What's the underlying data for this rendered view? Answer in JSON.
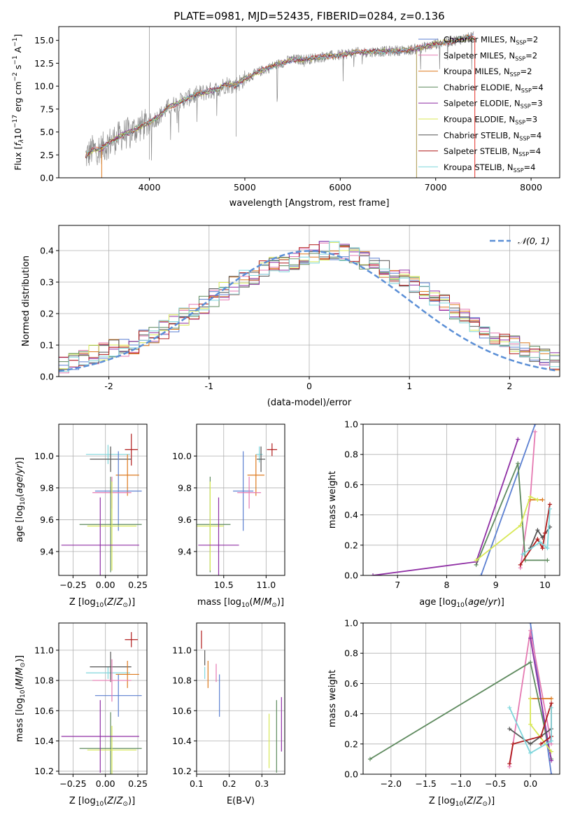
{
  "chart_data": [
    {
      "id": "spectrum",
      "type": "line",
      "title": "PLATE=0981, MJD=52435, FIBERID=0284, z=0.136",
      "xlabel": "wavelength [Angstrom, rest frame]",
      "ylabel": "Flux [f_λ 10^-17 erg cm^-2 s^-1 A^-1]",
      "xlim": [
        3050,
        8300
      ],
      "ylim": [
        0,
        16.5
      ],
      "xticks": [
        4000,
        5000,
        6000,
        7000,
        8000
      ],
      "yticks": [
        0.0,
        2.5,
        5.0,
        7.5,
        10.0,
        12.5,
        15.0
      ],
      "legend_placement": "upper-right",
      "data_shape": {
        "x": [
          3330,
          3400,
          3500,
          3600,
          3700,
          3800,
          3900,
          4000,
          4100,
          4200,
          4300,
          4400,
          4500,
          4600,
          4700,
          4800,
          4900,
          5000,
          5100,
          5200,
          5300,
          5400,
          5500,
          5600,
          5700,
          5800,
          5900,
          6000,
          6100,
          6200,
          6300,
          6400,
          6500,
          6600,
          6700,
          6800,
          6900,
          7000,
          7100,
          7200,
          7300,
          7400
        ],
        "y": [
          2.3,
          3.0,
          3.2,
          4.0,
          4.6,
          5.0,
          5.6,
          6.0,
          6.7,
          7.7,
          8.2,
          8.7,
          9.1,
          9.4,
          9.6,
          10.2,
          10.1,
          10.8,
          11.3,
          11.8,
          12.2,
          12.6,
          12.9,
          12.9,
          13.0,
          13.2,
          13.3,
          13.4,
          13.6,
          13.7,
          13.7,
          13.8,
          13.8,
          13.9,
          13.9,
          14.1,
          14.3,
          14.6,
          14.8,
          15.0,
          15.2,
          15.4
        ]
      },
      "legend": [
        {
          "label": "Chabrier MILES, N",
          "sub": "SSP",
          "suffix": "=2",
          "color": "#5b7fd1"
        },
        {
          "label": "Salpeter MILES, N",
          "sub": "SSP",
          "suffix": "=2",
          "color": "#e57ab2"
        },
        {
          "label": "Kroupa MILES, N",
          "sub": "SSP",
          "suffix": "=2",
          "color": "#dd7a1e"
        },
        {
          "label": "Chabrier ELODIE, N",
          "sub": "SSP",
          "suffix": "=4",
          "color": "#5e8a5e"
        },
        {
          "label": "Salpeter ELODIE, N",
          "sub": "SSP",
          "suffix": "=3",
          "color": "#8f2fa4"
        },
        {
          "label": "Kroupa ELODIE, N",
          "sub": "SSP",
          "suffix": "=3",
          "color": "#d8e856"
        },
        {
          "label": "Chabrier STELIB, N",
          "sub": "SSP",
          "suffix": "=4",
          "color": "#555555"
        },
        {
          "label": "Salpeter STELIB, N",
          "sub": "SSP",
          "suffix": "=4",
          "color": "#b01c1c"
        },
        {
          "label": "Kroupa STELIB, N",
          "sub": "SSP",
          "suffix": "=4",
          "color": "#7fd6dc"
        }
      ]
    },
    {
      "id": "residuals",
      "type": "line",
      "xlabel": "(data-model)/error",
      "ylabel": "Normed distribution",
      "xlim": [
        -2.5,
        2.5
      ],
      "ylim": [
        0,
        0.48
      ],
      "xticks": [
        -2,
        -1,
        0,
        1,
        2
      ],
      "yticks": [
        0.0,
        0.1,
        0.2,
        0.3,
        0.4
      ],
      "grid": true,
      "legend_placement": "upper-right",
      "legend": [
        {
          "label": "𝒩(0, 1)",
          "color": "#5b8fd6",
          "style": "dashed"
        }
      ],
      "histogram": {
        "bin_width": 0.1,
        "bin_start": -2.5,
        "base": [
          0.04,
          0.05,
          0.06,
          0.07,
          0.08,
          0.09,
          0.09,
          0.1,
          0.12,
          0.13,
          0.15,
          0.17,
          0.19,
          0.21,
          0.23,
          0.25,
          0.27,
          0.29,
          0.31,
          0.32,
          0.34,
          0.35,
          0.36,
          0.37,
          0.38,
          0.39,
          0.4,
          0.4,
          0.39,
          0.38,
          0.37,
          0.35,
          0.34,
          0.32,
          0.31,
          0.29,
          0.27,
          0.25,
          0.23,
          0.21,
          0.19,
          0.17,
          0.15,
          0.13,
          0.12,
          0.1,
          0.09,
          0.07,
          0.06,
          0.05
        ]
      }
    },
    {
      "id": "age-vs-Z",
      "type": "scatter",
      "xlabel": "Z [log10(Z/Z⊙)]",
      "ylabel": "age [log10(age/yr)]",
      "xlim": [
        -0.36,
        0.32
      ],
      "ylim": [
        9.25,
        10.2
      ],
      "xticks": [
        -0.25,
        0.0,
        0.25
      ],
      "xtick_labels": [
        "−0.25",
        "0.00",
        "0.25"
      ],
      "yticks": [
        9.4,
        9.6,
        9.8,
        10.0
      ],
      "grid": true,
      "points": [
        {
          "x": 0.2,
          "xerr": 0.05,
          "y": 10.04,
          "yerr": 0.1,
          "color": "#b01c1c"
        },
        {
          "x": 0.02,
          "xerr": 0.17,
          "y": 10.01,
          "yerr": 0.06,
          "color": "#7fd6dc"
        },
        {
          "x": 0.04,
          "xerr": 0.16,
          "y": 9.98,
          "yerr": 0.08,
          "color": "#555555"
        },
        {
          "x": 0.17,
          "xerr": 0.09,
          "y": 9.88,
          "yerr": 0.13,
          "color": "#dd7a1e"
        },
        {
          "x": 0.1,
          "xerr": 0.18,
          "y": 9.78,
          "yerr": 0.25,
          "color": "#5b7fd1"
        },
        {
          "x": 0.05,
          "xerr": 0.15,
          "y": 9.77,
          "yerr": 0.1,
          "color": "#e57ab2"
        },
        {
          "x": 0.04,
          "xerr": 0.24,
          "y": 9.57,
          "yerr": 0.3,
          "color": "#5e8a5e"
        },
        {
          "x": 0.05,
          "xerr": 0.19,
          "y": 9.56,
          "yerr": 0.28,
          "color": "#d8e856"
        },
        {
          "x": -0.04,
          "xerr": 0.3,
          "y": 9.44,
          "yerr": 0.3,
          "color": "#8f2fa4"
        }
      ]
    },
    {
      "id": "age-vs-mass",
      "type": "scatter",
      "xlabel": "mass [log10(M/M⊙)]",
      "xlim": [
        10.18,
        11.22
      ],
      "ylim": [
        9.25,
        10.2
      ],
      "xticks": [
        10.5,
        11.0
      ],
      "yticks": [
        9.4,
        9.6,
        9.8,
        10.0
      ],
      "grid": true,
      "points": [
        {
          "x": 11.07,
          "xerr": 0.06,
          "y": 10.04,
          "yerr": 0.04,
          "color": "#b01c1c"
        },
        {
          "x": 10.92,
          "xerr": 0.04,
          "y": 10.01,
          "yerr": 0.05,
          "color": "#7fd6dc"
        },
        {
          "x": 10.94,
          "xerr": 0.05,
          "y": 9.98,
          "yerr": 0.08,
          "color": "#555555"
        },
        {
          "x": 10.88,
          "xerr": 0.1,
          "y": 9.88,
          "yerr": 0.13,
          "color": "#dd7a1e"
        },
        {
          "x": 10.73,
          "xerr": 0.12,
          "y": 9.78,
          "yerr": 0.25,
          "color": "#5b7fd1"
        },
        {
          "x": 10.8,
          "xerr": 0.14,
          "y": 9.77,
          "yerr": 0.1,
          "color": "#e57ab2"
        },
        {
          "x": 10.34,
          "xerr": 0.24,
          "y": 9.57,
          "yerr": 0.3,
          "color": "#5e8a5e"
        },
        {
          "x": 10.34,
          "xerr": 0.16,
          "y": 9.56,
          "yerr": 0.28,
          "color": "#d8e856"
        },
        {
          "x": 10.44,
          "xerr": 0.24,
          "y": 9.44,
          "yerr": 0.3,
          "color": "#8f2fa4"
        }
      ]
    },
    {
      "id": "massweight-vs-age",
      "type": "line",
      "xlabel": "age [log10(age/yr)]",
      "ylabel": "mass weight",
      "xlim": [
        6.3,
        10.3
      ],
      "ylim": [
        0,
        1.0
      ],
      "xticks": [
        7,
        8,
        9,
        10
      ],
      "yticks": [
        0.0,
        0.2,
        0.4,
        0.6,
        0.8,
        1.0
      ],
      "grid": true,
      "series": [
        {
          "color": "#5b7fd1",
          "x": [
            8.7,
            9.8
          ],
          "y": [
            0.0,
            1.0
          ]
        },
        {
          "color": "#e57ab2",
          "x": [
            9.5,
            9.7,
            9.8
          ],
          "y": [
            0.05,
            0.5,
            0.95
          ]
        },
        {
          "color": "#dd7a1e",
          "x": [
            9.7,
            9.95
          ],
          "y": [
            0.5,
            0.5
          ]
        },
        {
          "color": "#5e8a5e",
          "x": [
            8.6,
            9.45,
            9.6,
            10.05
          ],
          "y": [
            0.07,
            0.74,
            0.1,
            0.1
          ]
        },
        {
          "color": "#8f2fa4",
          "x": [
            6.5,
            8.6,
            9.45
          ],
          "y": [
            0.0,
            0.09,
            0.9
          ]
        },
        {
          "color": "#d8e856",
          "x": [
            8.6,
            9.5,
            9.7,
            9.85
          ],
          "y": [
            0.1,
            0.33,
            0.52,
            0.5
          ]
        },
        {
          "color": "#555555",
          "x": [
            9.7,
            9.85,
            9.95,
            10.1
          ],
          "y": [
            0.18,
            0.3,
            0.25,
            0.32
          ]
        },
        {
          "color": "#b01c1c",
          "x": [
            9.5,
            9.85,
            9.95,
            10.0,
            10.1
          ],
          "y": [
            0.07,
            0.24,
            0.18,
            0.28,
            0.47
          ]
        },
        {
          "color": "#7fd6dc",
          "x": [
            9.55,
            9.9,
            10.05,
            10.1
          ],
          "y": [
            0.14,
            0.22,
            0.18,
            0.44
          ]
        }
      ]
    },
    {
      "id": "mass-vs-Z",
      "type": "scatter",
      "xlabel": "Z [log10(Z/Z⊙)]",
      "ylabel": "mass [log10(M/M⊙)]",
      "xlim": [
        -0.36,
        0.32
      ],
      "ylim": [
        10.18,
        11.18
      ],
      "xticks": [
        -0.25,
        0.0,
        0.25
      ],
      "xtick_labels": [
        "−0.25",
        "0.00",
        "0.25"
      ],
      "yticks": [
        10.2,
        10.4,
        10.6,
        10.8,
        11.0
      ],
      "grid": true,
      "points": [
        {
          "x": 0.2,
          "xerr": 0.05,
          "y": 11.07,
          "yerr": 0.05,
          "color": "#b01c1c"
        },
        {
          "x": 0.02,
          "xerr": 0.17,
          "y": 10.85,
          "yerr": 0.04,
          "color": "#7fd6dc"
        },
        {
          "x": 0.04,
          "xerr": 0.16,
          "y": 10.89,
          "yerr": 0.1,
          "color": "#555555"
        },
        {
          "x": 0.17,
          "xerr": 0.09,
          "y": 10.84,
          "yerr": 0.09,
          "color": "#dd7a1e"
        },
        {
          "x": 0.1,
          "xerr": 0.18,
          "y": 10.7,
          "yerr": 0.14,
          "color": "#5b7fd1"
        },
        {
          "x": 0.05,
          "xerr": 0.15,
          "y": 10.8,
          "yerr": 0.14,
          "color": "#e57ab2"
        },
        {
          "x": 0.04,
          "xerr": 0.24,
          "y": 10.35,
          "yerr": 0.24,
          "color": "#5e8a5e"
        },
        {
          "x": 0.05,
          "xerr": 0.19,
          "y": 10.34,
          "yerr": 0.16,
          "color": "#d8e856"
        },
        {
          "x": -0.04,
          "xerr": 0.3,
          "y": 10.43,
          "yerr": 0.24,
          "color": "#8f2fa4"
        }
      ]
    },
    {
      "id": "mass-vs-EBV",
      "type": "scatter",
      "xlabel": "E(B-V)",
      "xlim": [
        0.1,
        0.37
      ],
      "ylim": [
        10.18,
        11.18
      ],
      "xticks": [
        0.1,
        0.2,
        0.3
      ],
      "yticks": [
        10.2,
        10.4,
        10.6,
        10.8,
        11.0
      ],
      "grid": true,
      "points": [
        {
          "x": 0.115,
          "y": 11.07,
          "yerr": 0.06,
          "color": "#b01c1c"
        },
        {
          "x": 0.125,
          "y": 10.85,
          "yerr": 0.04,
          "color": "#7fd6dc"
        },
        {
          "x": 0.125,
          "y": 10.95,
          "yerr": 0.05,
          "color": "#555555"
        },
        {
          "x": 0.135,
          "y": 10.84,
          "yerr": 0.09,
          "color": "#dd7a1e"
        },
        {
          "x": 0.17,
          "y": 10.7,
          "yerr": 0.14,
          "color": "#5b7fd1"
        },
        {
          "x": 0.16,
          "y": 10.85,
          "yerr": 0.06,
          "color": "#e57ab2"
        },
        {
          "x": 0.345,
          "y": 10.43,
          "yerr": 0.24,
          "color": "#5e8a5e"
        },
        {
          "x": 0.322,
          "y": 10.4,
          "yerr": 0.18,
          "color": "#d8e856"
        },
        {
          "x": 0.36,
          "y": 10.51,
          "yerr": 0.18,
          "color": "#8f2fa4"
        }
      ]
    },
    {
      "id": "massweight-vs-Z",
      "type": "line",
      "xlabel": "Z [log10(Z/Z⊙)]",
      "ylabel": "mass weight",
      "xlim": [
        -2.4,
        0.42
      ],
      "ylim": [
        0,
        1.0
      ],
      "xticks": [
        -2.0,
        -1.5,
        -1.0,
        -0.5,
        0.0
      ],
      "xtick_labels": [
        "−2.0",
        "−1.5",
        "−1.0",
        "−0.5",
        "0.0"
      ],
      "yticks": [
        0.0,
        0.2,
        0.4,
        0.6,
        0.8,
        1.0
      ],
      "grid": true,
      "series": [
        {
          "color": "#5b7fd1",
          "x": [
            0.0,
            0.3
          ],
          "y": [
            1.0,
            0.0
          ]
        },
        {
          "color": "#e57ab2",
          "x": [
            -0.3,
            0.0,
            0.3
          ],
          "y": [
            0.05,
            0.95,
            0.2
          ]
        },
        {
          "color": "#dd7a1e",
          "x": [
            0.0,
            0.3
          ],
          "y": [
            0.5,
            0.5
          ]
        },
        {
          "color": "#5e8a5e",
          "x": [
            -2.3,
            0.0,
            0.3
          ],
          "y": [
            0.1,
            0.74,
            0.1
          ]
        },
        {
          "color": "#8f2fa4",
          "x": [
            0.0,
            0.3
          ],
          "y": [
            0.9,
            0.09
          ]
        },
        {
          "color": "#d8e856",
          "x": [
            0.0,
            0.0,
            0.3
          ],
          "y": [
            0.5,
            0.33,
            0.15
          ]
        },
        {
          "color": "#555555",
          "x": [
            -0.3,
            0.0,
            0.3
          ],
          "y": [
            0.3,
            0.2,
            0.3
          ]
        },
        {
          "color": "#b01c1c",
          "x": [
            -0.3,
            -0.25,
            0.15,
            0.3,
            0.3,
            0.15
          ],
          "y": [
            0.07,
            0.2,
            0.25,
            0.47,
            0.25,
            0.2
          ]
        },
        {
          "color": "#7fd6dc",
          "x": [
            -0.3,
            0.0,
            0.3,
            0.3
          ],
          "y": [
            0.44,
            0.14,
            0.22,
            0.44
          ]
        }
      ]
    }
  ]
}
